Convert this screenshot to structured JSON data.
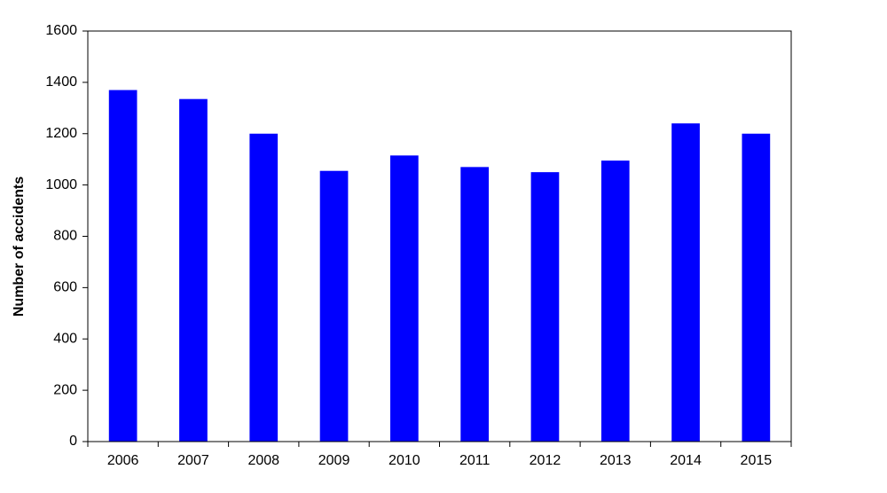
{
  "chart_data": {
    "type": "bar",
    "ylabel": "Number of accidents",
    "categories": [
      "2006",
      "2007",
      "2008",
      "2009",
      "2010",
      "2011",
      "2012",
      "2013",
      "2014",
      "2015"
    ],
    "values": [
      1370,
      1335,
      1200,
      1055,
      1115,
      1070,
      1050,
      1095,
      1240,
      1200
    ],
    "color": "#0000ff",
    "ylim": [
      0,
      1600
    ],
    "yticks": [
      0,
      200,
      400,
      600,
      800,
      1000,
      1200,
      1400,
      1600
    ],
    "grid": false
  }
}
